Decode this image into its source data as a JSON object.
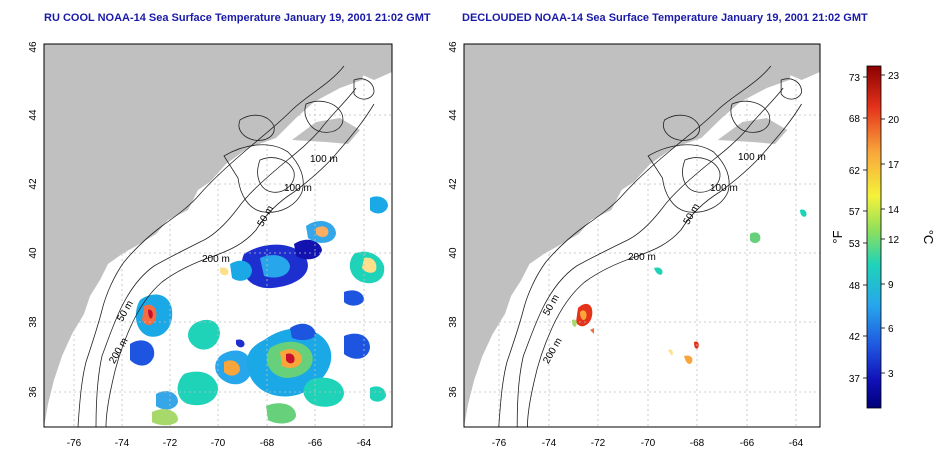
{
  "panels": [
    {
      "title": "RU COOL NOAA-14 Sea Surface Temperature January 19, 2001 21:02 GMT"
    },
    {
      "title": "DECLOUDED NOAA-14 Sea Surface Temperature January 19, 2001 21:02 GMT"
    }
  ],
  "axes": {
    "x_ticks": [
      "-76",
      "-74",
      "-72",
      "-70",
      "-68",
      "-66",
      "-64"
    ],
    "y_ticks": [
      "36",
      "38",
      "40",
      "42",
      "44",
      "46"
    ]
  },
  "contours": {
    "labels": [
      "100 m",
      "100 m",
      "50 m",
      "200 m",
      "50 m",
      "200 m"
    ]
  },
  "colorbar": {
    "f_label": "°F",
    "c_label": "°C",
    "f_ticks": [
      "73",
      "68",
      "62",
      "57",
      "53",
      "48",
      "42",
      "37"
    ],
    "c_ticks": [
      "23",
      "20",
      "17",
      "14",
      "12",
      "9",
      "6",
      "3"
    ],
    "colors": [
      "#a50026",
      "#d73027",
      "#f46d43",
      "#fdae61",
      "#fee08b",
      "#d9ef8b",
      "#a6d96a",
      "#66bd63",
      "#1ad9c0",
      "#35a6e8",
      "#2171d9",
      "#1212b0",
      "#000080"
    ]
  },
  "colors": {
    "land": "#c0c0c0",
    "title": "#1a1aa8",
    "grid": "#bfbfbf"
  }
}
